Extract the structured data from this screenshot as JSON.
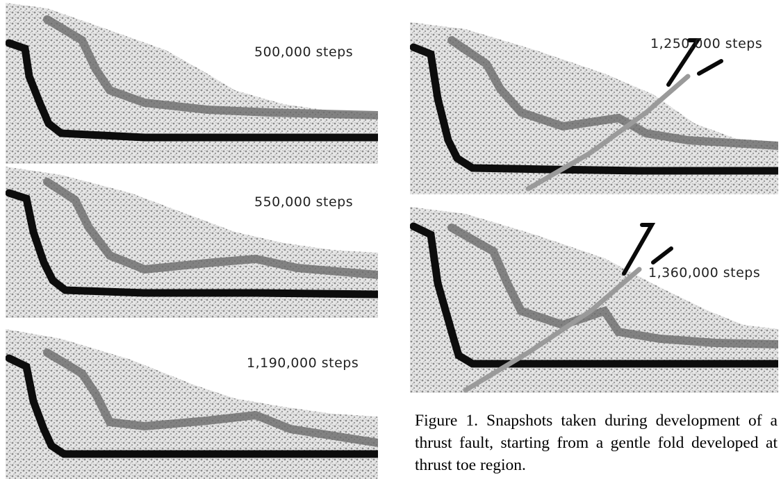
{
  "figure": {
    "panels": [
      {
        "label": "500,000 steps"
      },
      {
        "label": "550,000 steps"
      },
      {
        "label": "1,190,000 steps"
      },
      {
        "label": "1,250,000 steps"
      },
      {
        "label": "1,360,000 steps"
      }
    ],
    "caption": "Figure 1.  Snapshots taken during development of a thrust fault, starting from a gentle fold developed at thrust toe region."
  }
}
